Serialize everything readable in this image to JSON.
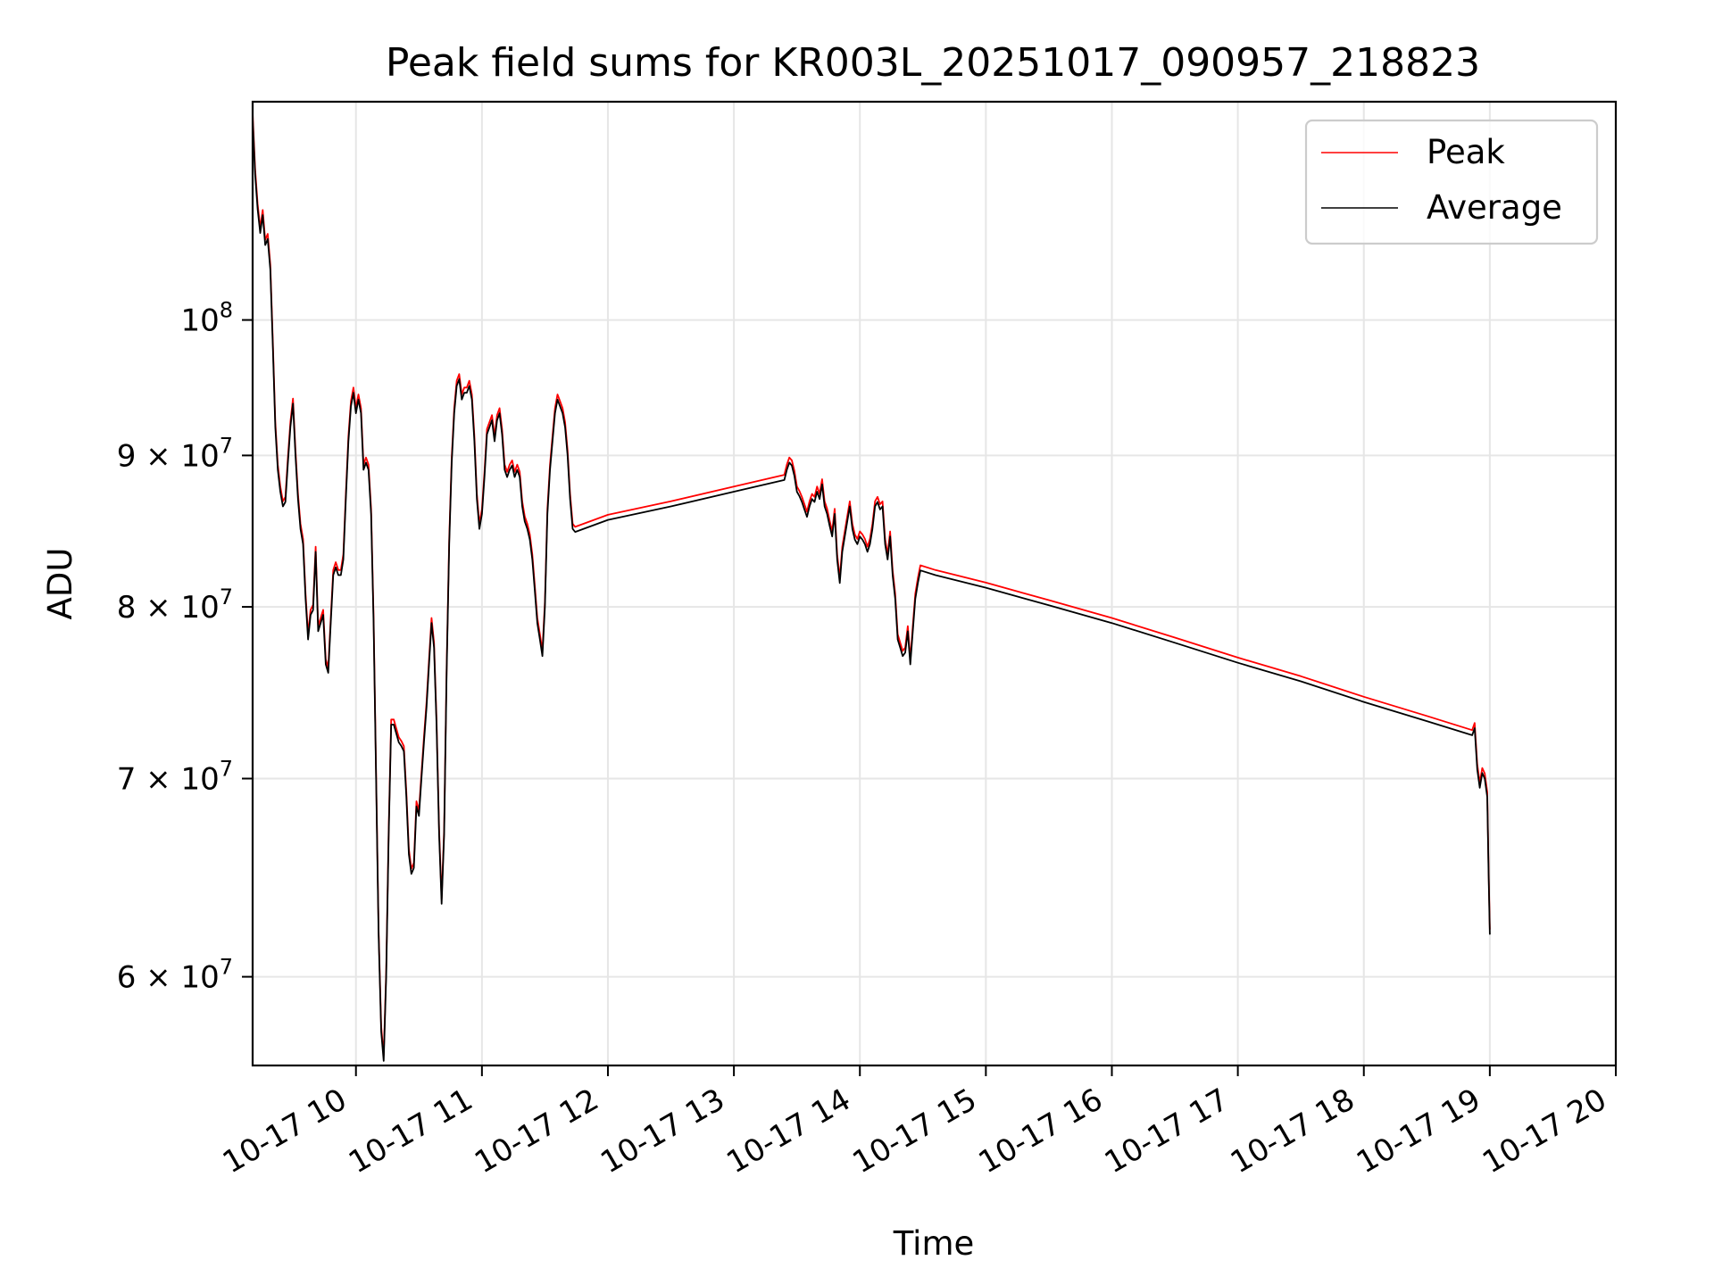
{
  "chart_data": {
    "type": "line",
    "title": "Peak field sums for KR003L_20251017_090957_218823",
    "xlabel": "Time",
    "ylabel": "ADU",
    "yscale": "log",
    "xlim": [
      9.18,
      20.0
    ],
    "ylim": [
      56000000,
      118500000
    ],
    "grid": true,
    "legend_position": "upper right",
    "x_ticks": [
      {
        "value": 10,
        "label": "10-17 10"
      },
      {
        "value": 11,
        "label": "10-17 11"
      },
      {
        "value": 12,
        "label": "10-17 12"
      },
      {
        "value": 13,
        "label": "10-17 13"
      },
      {
        "value": 14,
        "label": "10-17 14"
      },
      {
        "value": 15,
        "label": "10-17 15"
      },
      {
        "value": 16,
        "label": "10-17 16"
      },
      {
        "value": 17,
        "label": "10-17 17"
      },
      {
        "value": 18,
        "label": "10-17 18"
      },
      {
        "value": 19,
        "label": "10-17 19"
      },
      {
        "value": 20,
        "label": "10-17 20"
      }
    ],
    "y_ticks": [
      {
        "value": 60000000,
        "base": "6 × 10",
        "exp": "7"
      },
      {
        "value": 70000000,
        "base": "7 × 10",
        "exp": "7"
      },
      {
        "value": 80000000,
        "base": "8 × 10",
        "exp": "7"
      },
      {
        "value": 90000000,
        "base": "9 × 10",
        "exp": "7"
      },
      {
        "value": 100000000,
        "base": "10",
        "exp": "8"
      }
    ],
    "series": [
      {
        "name": "Peak",
        "color": "#ff0000",
        "offset": 1.004
      },
      {
        "name": "Average",
        "color": "#000000",
        "offset": 1.0
      }
    ],
    "points": [
      [
        9.18,
        117.0
      ],
      [
        9.2,
        112.0
      ],
      [
        9.22,
        109.0
      ],
      [
        9.24,
        107.0
      ],
      [
        9.26,
        108.5
      ],
      [
        9.28,
        106.0
      ],
      [
        9.3,
        106.5
      ],
      [
        9.32,
        104.0
      ],
      [
        9.34,
        98.0
      ],
      [
        9.36,
        92.0
      ],
      [
        9.38,
        89.0
      ],
      [
        9.4,
        87.5
      ],
      [
        9.42,
        86.5
      ],
      [
        9.44,
        86.8
      ],
      [
        9.46,
        89.5
      ],
      [
        9.48,
        92.0
      ],
      [
        9.5,
        93.7
      ],
      [
        9.52,
        90.0
      ],
      [
        9.54,
        87.0
      ],
      [
        9.56,
        85.0
      ],
      [
        9.58,
        84.0
      ],
      [
        9.6,
        80.5
      ],
      [
        9.62,
        78.0
      ],
      [
        9.64,
        79.5
      ],
      [
        9.66,
        79.8
      ],
      [
        9.68,
        83.5
      ],
      [
        9.7,
        78.5
      ],
      [
        9.72,
        79.0
      ],
      [
        9.74,
        79.5
      ],
      [
        9.76,
        76.5
      ],
      [
        9.78,
        76.0
      ],
      [
        9.8,
        79.0
      ],
      [
        9.82,
        82.0
      ],
      [
        9.84,
        82.5
      ],
      [
        9.86,
        82.0
      ],
      [
        9.88,
        82.0
      ],
      [
        9.9,
        83.0
      ],
      [
        9.92,
        87.0
      ],
      [
        9.94,
        91.0
      ],
      [
        9.96,
        93.5
      ],
      [
        9.98,
        94.5
      ],
      [
        10.0,
        93.0
      ],
      [
        10.02,
        94.0
      ],
      [
        10.04,
        93.0
      ],
      [
        10.06,
        89.0
      ],
      [
        10.08,
        89.5
      ],
      [
        10.1,
        89.0
      ],
      [
        10.12,
        86.0
      ],
      [
        10.14,
        79.0
      ],
      [
        10.16,
        70.0
      ],
      [
        10.18,
        62.0
      ],
      [
        10.2,
        57.5
      ],
      [
        10.22,
        56.2
      ],
      [
        10.24,
        60.0
      ],
      [
        10.26,
        67.0
      ],
      [
        10.28,
        73.0
      ],
      [
        10.3,
        73.0
      ],
      [
        10.32,
        72.5
      ],
      [
        10.34,
        72.0
      ],
      [
        10.36,
        71.8
      ],
      [
        10.38,
        71.5
      ],
      [
        10.4,
        69.0
      ],
      [
        10.42,
        66.0
      ],
      [
        10.44,
        65.0
      ],
      [
        10.46,
        65.3
      ],
      [
        10.48,
        68.5
      ],
      [
        10.5,
        68.0
      ],
      [
        10.52,
        70.0
      ],
      [
        10.54,
        72.0
      ],
      [
        10.56,
        74.0
      ],
      [
        10.58,
        76.5
      ],
      [
        10.6,
        79.0
      ],
      [
        10.62,
        77.5
      ],
      [
        10.64,
        73.0
      ],
      [
        10.66,
        67.0
      ],
      [
        10.68,
        63.5
      ],
      [
        10.7,
        67.0
      ],
      [
        10.72,
        76.0
      ],
      [
        10.74,
        84.0
      ],
      [
        10.76,
        89.5
      ],
      [
        10.78,
        93.0
      ],
      [
        10.8,
        95.0
      ],
      [
        10.82,
        95.5
      ],
      [
        10.84,
        94.0
      ],
      [
        10.86,
        94.5
      ],
      [
        10.88,
        94.5
      ],
      [
        10.9,
        95.0
      ],
      [
        10.92,
        94.0
      ],
      [
        10.94,
        91.0
      ],
      [
        10.96,
        87.0
      ],
      [
        10.98,
        85.0
      ],
      [
        11.0,
        86.0
      ],
      [
        11.02,
        88.5
      ],
      [
        11.04,
        91.5
      ],
      [
        11.06,
        92.0
      ],
      [
        11.08,
        92.5
      ],
      [
        11.1,
        91.0
      ],
      [
        11.12,
        92.5
      ],
      [
        11.14,
        93.0
      ],
      [
        11.16,
        91.5
      ],
      [
        11.18,
        89.0
      ],
      [
        11.2,
        88.5
      ],
      [
        11.22,
        89.0
      ],
      [
        11.24,
        89.3
      ],
      [
        11.26,
        88.5
      ],
      [
        11.28,
        89.0
      ],
      [
        11.3,
        88.5
      ],
      [
        11.32,
        86.5
      ],
      [
        11.34,
        85.5
      ],
      [
        11.36,
        85.0
      ],
      [
        11.38,
        84.3
      ],
      [
        11.4,
        83.0
      ],
      [
        11.42,
        81.0
      ],
      [
        11.44,
        79.0
      ],
      [
        11.46,
        78.0
      ],
      [
        11.48,
        77.0
      ],
      [
        11.5,
        80.0
      ],
      [
        11.52,
        86.0
      ],
      [
        11.54,
        89.0
      ],
      [
        11.56,
        91.0
      ],
      [
        11.58,
        93.0
      ],
      [
        11.6,
        94.0
      ],
      [
        11.62,
        93.5
      ],
      [
        11.64,
        93.0
      ],
      [
        11.66,
        92.0
      ],
      [
        11.68,
        90.0
      ],
      [
        11.7,
        87.0
      ],
      [
        11.72,
        85.0
      ],
      [
        11.74,
        84.8
      ],
      [
        12.0,
        85.6
      ],
      [
        12.5,
        86.5
      ],
      [
        13.0,
        87.5
      ],
      [
        13.4,
        88.3
      ],
      [
        13.42,
        89.0
      ],
      [
        13.44,
        89.5
      ],
      [
        13.46,
        89.3
      ],
      [
        13.48,
        88.6
      ],
      [
        13.5,
        87.5
      ],
      [
        13.52,
        87.2
      ],
      [
        13.54,
        86.8
      ],
      [
        13.56,
        86.3
      ],
      [
        13.58,
        85.8
      ],
      [
        13.6,
        86.5
      ],
      [
        13.62,
        87.0
      ],
      [
        13.64,
        86.8
      ],
      [
        13.66,
        87.5
      ],
      [
        13.68,
        87.0
      ],
      [
        13.7,
        88.0
      ],
      [
        13.72,
        86.5
      ],
      [
        13.74,
        86.0
      ],
      [
        13.76,
        85.2
      ],
      [
        13.78,
        84.5
      ],
      [
        13.8,
        86.0
      ],
      [
        13.82,
        83.0
      ],
      [
        13.84,
        81.5
      ],
      [
        13.86,
        83.5
      ],
      [
        13.88,
        84.5
      ],
      [
        13.9,
        85.5
      ],
      [
        13.92,
        86.5
      ],
      [
        13.94,
        85.0
      ],
      [
        13.96,
        84.3
      ],
      [
        13.98,
        84.0
      ],
      [
        14.0,
        84.5
      ],
      [
        14.02,
        84.3
      ],
      [
        14.04,
        84.0
      ],
      [
        14.06,
        83.5
      ],
      [
        14.08,
        84.0
      ],
      [
        14.1,
        85.0
      ],
      [
        14.12,
        86.5
      ],
      [
        14.14,
        86.8
      ],
      [
        14.16,
        86.3
      ],
      [
        14.18,
        86.5
      ],
      [
        14.2,
        84.0
      ],
      [
        14.22,
        83.0
      ],
      [
        14.24,
        84.5
      ],
      [
        14.26,
        82.0
      ],
      [
        14.28,
        80.5
      ],
      [
        14.3,
        78.0
      ],
      [
        14.32,
        77.5
      ],
      [
        14.34,
        77.0
      ],
      [
        14.36,
        77.2
      ],
      [
        14.38,
        78.5
      ],
      [
        14.4,
        76.5
      ],
      [
        14.42,
        78.5
      ],
      [
        14.44,
        80.5
      ],
      [
        14.46,
        81.5
      ],
      [
        14.48,
        82.3
      ],
      [
        14.6,
        82.0
      ],
      [
        15.0,
        81.2
      ],
      [
        15.5,
        80.1
      ],
      [
        16.0,
        79.0
      ],
      [
        16.5,
        77.8
      ],
      [
        17.0,
        76.6
      ],
      [
        17.5,
        75.5
      ],
      [
        18.0,
        74.3
      ],
      [
        18.5,
        73.2
      ],
      [
        18.86,
        72.4
      ],
      [
        18.88,
        72.8
      ],
      [
        18.9,
        70.5
      ],
      [
        18.92,
        69.5
      ],
      [
        18.94,
        70.3
      ],
      [
        18.96,
        70.0
      ],
      [
        18.98,
        69.0
      ],
      [
        18.99,
        65.0
      ],
      [
        19.0,
        62.0
      ]
    ]
  }
}
